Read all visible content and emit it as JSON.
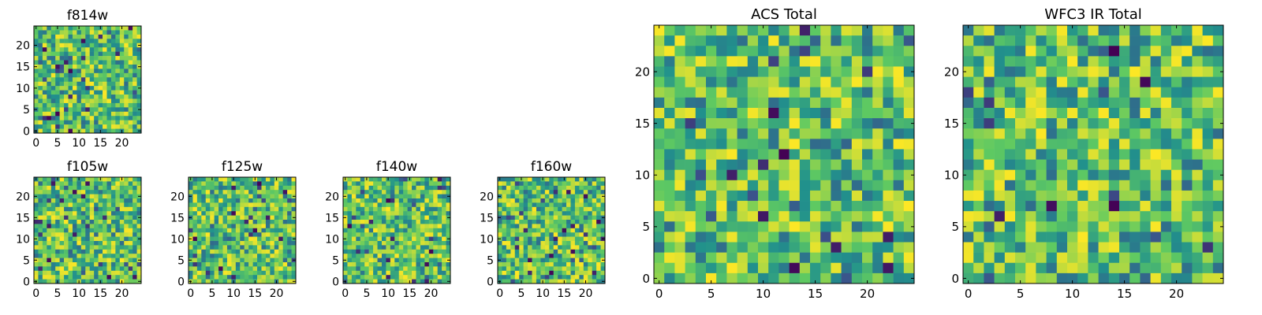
{
  "figure": {
    "description_colormap": "viridis",
    "colors": [
      "#440154",
      "#3b528b",
      "#21918c",
      "#5ec962",
      "#fde725"
    ]
  },
  "chart_data": [
    {
      "id": "f814w",
      "type": "heatmap",
      "title": "f814w",
      "xlabel": "",
      "ylabel": "",
      "xlim": [
        0,
        25
      ],
      "ylim": [
        0,
        25
      ],
      "xticks": [
        0,
        5,
        10,
        15,
        20
      ],
      "yticks": [
        0,
        5,
        10,
        15,
        20
      ],
      "xtick_labels": [
        "0",
        "5",
        "10",
        "15",
        "20"
      ],
      "ytick_labels": [
        "0",
        "5",
        "10",
        "15",
        "20"
      ],
      "grid_size": [
        25,
        25
      ],
      "seed": 11
    },
    {
      "id": "f105w",
      "type": "heatmap",
      "title": "f105w",
      "xlabel": "",
      "ylabel": "",
      "xlim": [
        0,
        25
      ],
      "ylim": [
        0,
        25
      ],
      "xticks": [
        0,
        5,
        10,
        15,
        20
      ],
      "yticks": [
        0,
        5,
        10,
        15,
        20
      ],
      "xtick_labels": [
        "0",
        "5",
        "10",
        "15",
        "20"
      ],
      "ytick_labels": [
        "0",
        "5",
        "10",
        "15",
        "20"
      ],
      "grid_size": [
        25,
        25
      ],
      "seed": 23
    },
    {
      "id": "f125w",
      "type": "heatmap",
      "title": "f125w",
      "xlabel": "",
      "ylabel": "",
      "xlim": [
        0,
        25
      ],
      "ylim": [
        0,
        25
      ],
      "xticks": [
        0,
        5,
        10,
        15,
        20
      ],
      "yticks": [
        0,
        5,
        10,
        15,
        20
      ],
      "xtick_labels": [
        "0",
        "5",
        "10",
        "15",
        "20"
      ],
      "ytick_labels": [
        "0",
        "5",
        "10",
        "15",
        "20"
      ],
      "grid_size": [
        25,
        25
      ],
      "seed": 37
    },
    {
      "id": "f140w",
      "type": "heatmap",
      "title": "f140w",
      "xlabel": "",
      "ylabel": "",
      "xlim": [
        0,
        25
      ],
      "ylim": [
        0,
        25
      ],
      "xticks": [
        0,
        5,
        10,
        15,
        20
      ],
      "yticks": [
        0,
        5,
        10,
        15,
        20
      ],
      "xtick_labels": [
        "0",
        "5",
        "10",
        "15",
        "20"
      ],
      "ytick_labels": [
        "0",
        "5",
        "10",
        "15",
        "20"
      ],
      "grid_size": [
        25,
        25
      ],
      "seed": 41
    },
    {
      "id": "f160w",
      "type": "heatmap",
      "title": "f160w",
      "xlabel": "",
      "ylabel": "",
      "xlim": [
        0,
        25
      ],
      "ylim": [
        0,
        25
      ],
      "xticks": [
        0,
        5,
        10,
        15,
        20
      ],
      "yticks": [
        0,
        5,
        10,
        15,
        20
      ],
      "xtick_labels": [
        "0",
        "5",
        "10",
        "15",
        "20"
      ],
      "ytick_labels": [
        "0",
        "5",
        "10",
        "15",
        "20"
      ],
      "grid_size": [
        25,
        25
      ],
      "seed": 53
    },
    {
      "id": "acs-total",
      "type": "heatmap",
      "title": "ACS Total",
      "xlabel": "",
      "ylabel": "",
      "xlim": [
        0,
        25
      ],
      "ylim": [
        0,
        25
      ],
      "xticks": [
        0,
        5,
        10,
        15,
        20
      ],
      "yticks": [
        0,
        5,
        10,
        15,
        20
      ],
      "xtick_labels": [
        "0",
        "5",
        "10",
        "15",
        "20"
      ],
      "ytick_labels": [
        "0",
        "5",
        "10",
        "15",
        "20"
      ],
      "grid_size": [
        25,
        25
      ],
      "seed": 67
    },
    {
      "id": "wfc3-ir-total",
      "type": "heatmap",
      "title": "WFC3 IR Total",
      "xlabel": "",
      "ylabel": "",
      "xlim": [
        0,
        25
      ],
      "ylim": [
        0,
        25
      ],
      "xticks": [
        0,
        5,
        10,
        15,
        20
      ],
      "yticks": [
        0,
        5,
        10,
        15,
        20
      ],
      "xtick_labels": [
        "0",
        "5",
        "10",
        "15",
        "20"
      ],
      "ytick_labels": [
        "0",
        "5",
        "10",
        "15",
        "20"
      ],
      "grid_size": [
        25,
        25
      ],
      "seed": 79
    }
  ]
}
